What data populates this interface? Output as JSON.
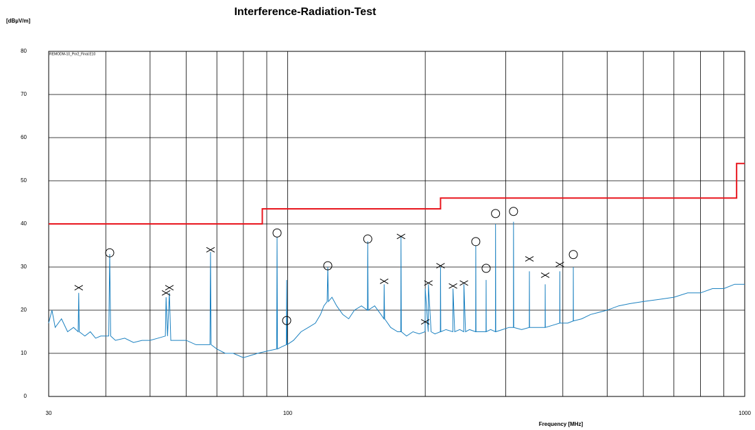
{
  "chart_data": {
    "type": "emi-line",
    "title": "Interference-Radiation-Test",
    "y_label": "[dBµV/m]",
    "x_label": "Frequency [MHz]",
    "annotation": "REMODM-10_Por2_Final.E10",
    "xscale": "log",
    "xlim": [
      30,
      1000
    ],
    "xticks": [
      30,
      100,
      1000
    ],
    "x_minor_grid": [
      40,
      50,
      60,
      70,
      80,
      90,
      200,
      300,
      400,
      500,
      600,
      700,
      800,
      900
    ],
    "ylim": [
      0,
      80
    ],
    "yticks": [
      0,
      10,
      20,
      30,
      40,
      50,
      60,
      70,
      80
    ],
    "grid": true,
    "trace": {
      "color": "#1a80c0",
      "x": [
        30,
        30.5,
        31,
        32,
        33,
        34,
        34.8,
        34.9,
        35,
        36,
        37,
        38,
        39,
        40.6,
        40.8,
        41,
        42,
        44,
        46,
        48,
        50,
        52,
        54,
        54.2,
        54.6,
        55.1,
        55.5,
        57,
        60,
        63,
        66,
        67.6,
        67.8,
        68,
        70,
        73,
        76,
        80,
        83,
        86,
        90,
        94.6,
        94.8,
        95,
        97,
        99.3,
        99.5,
        99.7,
        103,
        107,
        111,
        115,
        118,
        120,
        122,
        122.4,
        122.8,
        125,
        128,
        132,
        136,
        140,
        145,
        149.5,
        149.7,
        150,
        155,
        160,
        162.4,
        162.6,
        163,
        168,
        174,
        176.8,
        177,
        177.3,
        182,
        188,
        194,
        199.8,
        200,
        203,
        203.2,
        206,
        210,
        215.8,
        216,
        216.3,
        222,
        229.8,
        230,
        232,
        238,
        242.8,
        243,
        245,
        250,
        257.8,
        258,
        258.3,
        265,
        271.6,
        271.8,
        272,
        278,
        284.8,
        285,
        285.3,
        295,
        305,
        311.8,
        312,
        312.4,
        325,
        337.8,
        338,
        338.3,
        350,
        365.8,
        366,
        366.3,
        380,
        393.8,
        394,
        394.3,
        410,
        421.5,
        421.7,
        422,
        440,
        460,
        480,
        500,
        530,
        560,
        600,
        650,
        700,
        750,
        800,
        850,
        900,
        950,
        1000
      ],
      "values": [
        17,
        20,
        16,
        18,
        15,
        16,
        15,
        24,
        15,
        14,
        15,
        13.5,
        14,
        14,
        33,
        14,
        13,
        13.5,
        12.5,
        13,
        13,
        13.5,
        14,
        23,
        14,
        24,
        13,
        13,
        13,
        12,
        12,
        12,
        33.5,
        12,
        11,
        10,
        10,
        9,
        9.5,
        10,
        10.5,
        11,
        37,
        11,
        11.5,
        12,
        27,
        12,
        13,
        15,
        16,
        17,
        19,
        21,
        22,
        30,
        22,
        23,
        21,
        19,
        18,
        20,
        21,
        20,
        36,
        20,
        21,
        19,
        18,
        26,
        18,
        16,
        15,
        15,
        37,
        15,
        14,
        15,
        14.5,
        15,
        25,
        15,
        26,
        15,
        14.5,
        15,
        30,
        15,
        15.5,
        15,
        25,
        15,
        15.5,
        15,
        26,
        15,
        15.5,
        15,
        35,
        15,
        15,
        15,
        27,
        15,
        15.5,
        15,
        40,
        15,
        15.5,
        16,
        16,
        40.5,
        16,
        15.5,
        16,
        29,
        16,
        16,
        16,
        26,
        16,
        16.5,
        17,
        29,
        17,
        17,
        17.5,
        30,
        17.5,
        18,
        19,
        19.5,
        20,
        21,
        21.5,
        22,
        22.5,
        23,
        24,
        24,
        25,
        25,
        26,
        26
      ]
    },
    "limit": {
      "color": "#e8141c",
      "x": [
        30,
        88,
        88,
        216,
        216,
        960,
        960,
        1000
      ],
      "values": [
        40,
        40,
        43.5,
        43.5,
        46,
        46,
        54,
        54
      ]
    },
    "circle_markers": {
      "x": [
        40.8,
        94.8,
        99.5,
        122.4,
        149.7,
        258,
        271.8,
        285,
        312,
        421.7
      ],
      "values": [
        33.3,
        37.9,
        17.6,
        30.3,
        36.5,
        35.9,
        29.7,
        42.4,
        42.9,
        32.9
      ]
    },
    "cross_markers": {
      "x": [
        34.9,
        54.2,
        55.1,
        67.8,
        162.6,
        177,
        200,
        203.2,
        216,
        230,
        243,
        338,
        366,
        394
      ],
      "values": [
        25.2,
        24.0,
        25.2,
        34.0,
        26.7,
        37.1,
        17.3,
        26.3,
        30.3,
        25.6,
        26.3,
        31.9,
        28.1,
        30.6
      ]
    }
  }
}
